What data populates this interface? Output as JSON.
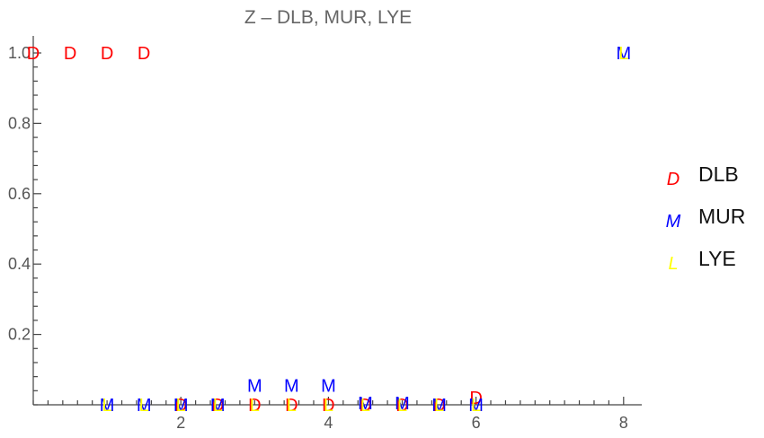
{
  "chart_data": {
    "type": "scatter",
    "title": "Z – DLB, MUR, LYE",
    "xlim": [
      0,
      8.2
    ],
    "ylim": [
      0,
      1.03
    ],
    "x_ticks": [
      {
        "value": 2,
        "label": "2"
      },
      {
        "value": 4,
        "label": "4"
      },
      {
        "value": 6,
        "label": "6"
      },
      {
        "value": 8,
        "label": "8"
      }
    ],
    "y_ticks": [
      {
        "value": 0.2,
        "label": "0.2"
      },
      {
        "value": 0.4,
        "label": "0.4"
      },
      {
        "value": 0.6,
        "label": "0.6"
      },
      {
        "value": 0.8,
        "label": "0.8"
      },
      {
        "value": 1.0,
        "label": "1.0"
      }
    ],
    "legend_position": "right",
    "series": [
      {
        "name": "DLB",
        "marker": "D",
        "color": "#ff0000",
        "points": [
          [
            0,
            1
          ],
          [
            0.5,
            1
          ],
          [
            1,
            1
          ],
          [
            1.5,
            1
          ],
          [
            2,
            0
          ],
          [
            2.5,
            0
          ],
          [
            3,
            0
          ],
          [
            3.5,
            0
          ],
          [
            4,
            0
          ],
          [
            4.5,
            0
          ],
          [
            5,
            0
          ],
          [
            5.5,
            0
          ],
          [
            6,
            0.02
          ]
        ]
      },
      {
        "name": "MUR",
        "marker": "M",
        "color": "#0000ff",
        "points": [
          [
            1,
            0
          ],
          [
            1.5,
            0
          ],
          [
            2,
            0
          ],
          [
            2.5,
            0
          ],
          [
            3,
            0.055
          ],
          [
            3.5,
            0.055
          ],
          [
            4,
            0.055
          ],
          [
            4.5,
            0.005
          ],
          [
            5,
            0.005
          ],
          [
            5.5,
            0
          ],
          [
            6,
            0
          ],
          [
            8,
            1
          ]
        ]
      },
      {
        "name": "LYE",
        "marker": "L",
        "color": "#ffff00",
        "points": [
          [
            1,
            0
          ],
          [
            1.5,
            0
          ],
          [
            2,
            0
          ],
          [
            2.5,
            0
          ],
          [
            3,
            0
          ],
          [
            3.5,
            0
          ],
          [
            4,
            0
          ],
          [
            4.5,
            0
          ],
          [
            5,
            0
          ],
          [
            5.5,
            0
          ],
          [
            6,
            0
          ],
          [
            8,
            1
          ]
        ]
      }
    ]
  }
}
